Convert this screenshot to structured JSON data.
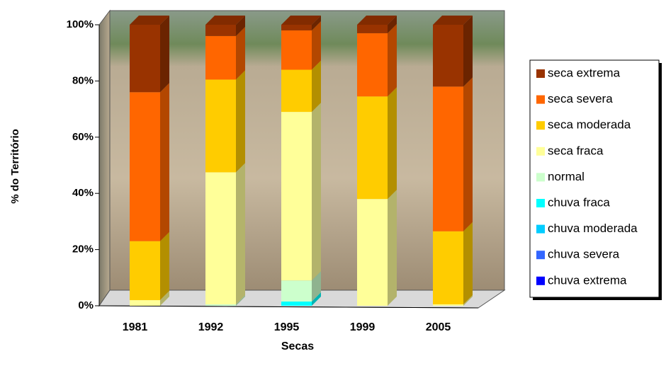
{
  "chart_data": {
    "type": "bar3d_stacked",
    "x_label": "Secas",
    "y_label": "% do Território",
    "categories": [
      "1981",
      "1992",
      "1995",
      "1999",
      "2005"
    ],
    "series": [
      {
        "name": "seca extrema",
        "color": "#993300",
        "values": [
          24,
          4,
          2,
          3,
          22
        ]
      },
      {
        "name": "seca severa",
        "color": "#ff6600",
        "values": [
          53,
          15.5,
          14,
          22.5,
          51.5
        ]
      },
      {
        "name": "seca moderada",
        "color": "#ffcc00",
        "values": [
          21,
          33,
          15,
          36.5,
          26
        ]
      },
      {
        "name": "seca fraca",
        "color": "#ffff99",
        "values": [
          2,
          47,
          60,
          38,
          0.5
        ]
      },
      {
        "name": "normal",
        "color": "#ccffcc",
        "values": [
          0,
          0.5,
          7.5,
          0,
          0
        ]
      },
      {
        "name": "chuva fraca",
        "color": "#00ffff",
        "values": [
          0,
          0,
          1.5,
          0,
          0
        ]
      },
      {
        "name": "chuva moderada",
        "color": "#00ccff",
        "values": [
          0,
          0,
          0,
          0,
          0
        ]
      },
      {
        "name": "chuva severa",
        "color": "#3366ff",
        "values": [
          0,
          0,
          0,
          0,
          0
        ]
      },
      {
        "name": "chuva extrema",
        "color": "#0000ff",
        "values": [
          0,
          0,
          0,
          0,
          0
        ]
      }
    ],
    "ylim": [
      0,
      100
    ],
    "yticks": [
      {
        "value": 0,
        "label": "0%"
      },
      {
        "value": 20,
        "label": "20%"
      },
      {
        "value": 40,
        "label": "40%"
      },
      {
        "value": 60,
        "label": "60%"
      },
      {
        "value": 80,
        "label": "80%"
      },
      {
        "value": 100,
        "label": "100%"
      }
    ],
    "stacked": true,
    "legend": "right"
  }
}
